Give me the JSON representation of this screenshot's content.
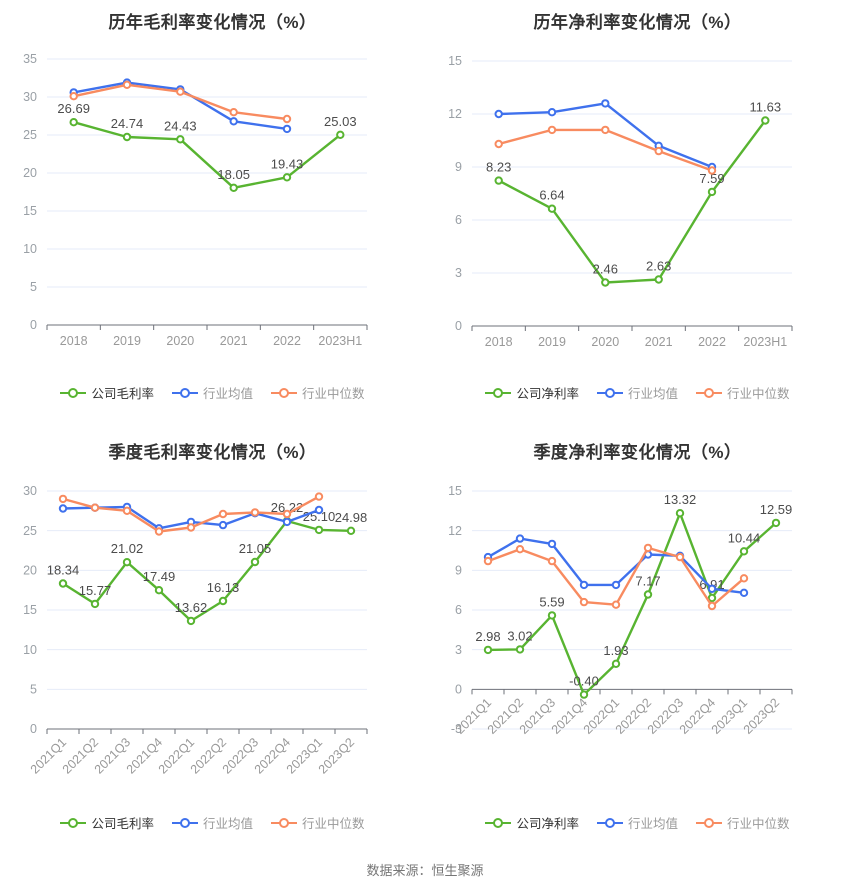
{
  "page": {
    "background": "#ffffff",
    "footer": "数据来源：恒生聚源"
  },
  "colors": {
    "company": "#58B431",
    "mean": "#3F71ED",
    "median": "#F88B60",
    "grid": "#E6EBF8",
    "axis": "#6E7079",
    "tick_label": "#9AA0A6",
    "data_label": "#4C4C4C",
    "title": "#333333"
  },
  "chart_data": [
    {
      "type": "line",
      "title": "历年毛利率变化情况（%）",
      "xlabel": "",
      "ylabel": "",
      "grid": true,
      "legend_position": "bottom",
      "ylim": [
        0,
        35
      ],
      "yticks": [
        0,
        5,
        10,
        15,
        20,
        25,
        30,
        35
      ],
      "rotate_x_labels": false,
      "categories": [
        "2018",
        "2019",
        "2020",
        "2021",
        "2022",
        "2023H1"
      ],
      "series": [
        {
          "key": "company",
          "name": "公司毛利率",
          "values": [
            26.69,
            24.74,
            24.43,
            18.05,
            19.43,
            25.03
          ],
          "labels": [
            "26.69",
            "24.74",
            "24.43",
            "18.05",
            "19.43",
            "25.03"
          ]
        },
        {
          "key": "mean",
          "name": "行业均值",
          "values": [
            30.6,
            31.9,
            31.0,
            26.8,
            25.8,
            null
          ]
        },
        {
          "key": "median",
          "name": "行业中位数",
          "values": [
            30.1,
            31.6,
            30.7,
            28.0,
            27.1,
            null
          ]
        }
      ]
    },
    {
      "type": "line",
      "title": "历年净利率变化情况（%）",
      "xlabel": "",
      "ylabel": "",
      "grid": true,
      "legend_position": "bottom",
      "ylim": [
        0,
        15
      ],
      "yticks": [
        0,
        3,
        6,
        9,
        12,
        15
      ],
      "rotate_x_labels": false,
      "categories": [
        "2018",
        "2019",
        "2020",
        "2021",
        "2022",
        "2023H1"
      ],
      "series": [
        {
          "key": "company",
          "name": "公司净利率",
          "values": [
            8.23,
            6.64,
            2.46,
            2.63,
            7.59,
            11.63
          ],
          "labels": [
            "8.23",
            "6.64",
            "2.46",
            "2.63",
            "7.59",
            "11.63"
          ]
        },
        {
          "key": "mean",
          "name": "行业均值",
          "values": [
            12.0,
            12.1,
            12.6,
            10.2,
            9.0,
            null
          ]
        },
        {
          "key": "median",
          "name": "行业中位数",
          "values": [
            10.3,
            11.1,
            11.1,
            9.9,
            8.8,
            null
          ]
        }
      ]
    },
    {
      "type": "line",
      "title": "季度毛利率变化情况（%）",
      "xlabel": "",
      "ylabel": "",
      "grid": true,
      "legend_position": "bottom",
      "ylim": [
        0,
        30
      ],
      "yticks": [
        0,
        5,
        10,
        15,
        20,
        25,
        30
      ],
      "rotate_x_labels": true,
      "categories": [
        "2021Q1",
        "2021Q2",
        "2021Q3",
        "2021Q4",
        "2022Q1",
        "2022Q2",
        "2022Q3",
        "2022Q4",
        "2023Q1",
        "2023Q2"
      ],
      "series": [
        {
          "key": "company",
          "name": "公司毛利率",
          "values": [
            18.34,
            15.77,
            21.02,
            17.49,
            13.62,
            16.13,
            21.05,
            26.22,
            25.1,
            24.98
          ],
          "labels": [
            "18.34",
            "15.77",
            "21.02",
            "17.49",
            "13.62",
            "16.13",
            "21.05",
            "26.22",
            "25.10",
            "24.98"
          ]
        },
        {
          "key": "mean",
          "name": "行业均值",
          "values": [
            27.8,
            27.9,
            28.0,
            25.3,
            26.1,
            25.7,
            27.2,
            26.1,
            27.6,
            null
          ]
        },
        {
          "key": "median",
          "name": "行业中位数",
          "values": [
            29.0,
            27.9,
            27.5,
            24.9,
            25.4,
            27.1,
            27.3,
            27.1,
            29.3,
            null
          ]
        }
      ]
    },
    {
      "type": "line",
      "title": "季度净利率变化情况（%）",
      "xlabel": "",
      "ylabel": "",
      "grid": true,
      "legend_position": "bottom",
      "ylim": [
        -3,
        15
      ],
      "yticks": [
        -3,
        0,
        3,
        6,
        9,
        12,
        15
      ],
      "rotate_x_labels": true,
      "categories": [
        "2021Q1",
        "2021Q2",
        "2021Q3",
        "2021Q4",
        "2022Q1",
        "2022Q2",
        "2022Q3",
        "2022Q4",
        "2023Q1",
        "2023Q2"
      ],
      "series": [
        {
          "key": "company",
          "name": "公司净利率",
          "values": [
            2.98,
            3.02,
            5.59,
            -0.4,
            1.93,
            7.17,
            13.32,
            6.91,
            10.44,
            12.59
          ],
          "labels": [
            "2.98",
            "3.02",
            "5.59",
            "-0.40",
            "1.93",
            "7.17",
            "13.32",
            "6.91",
            "10.44",
            "12.59"
          ]
        },
        {
          "key": "mean",
          "name": "行业均值",
          "values": [
            10.0,
            11.4,
            11.0,
            7.9,
            7.9,
            10.2,
            10.1,
            7.6,
            7.3,
            null
          ]
        },
        {
          "key": "median",
          "name": "行业中位数",
          "values": [
            9.7,
            10.6,
            9.7,
            6.6,
            6.4,
            10.7,
            10.0,
            6.3,
            8.4,
            null
          ]
        }
      ]
    }
  ]
}
